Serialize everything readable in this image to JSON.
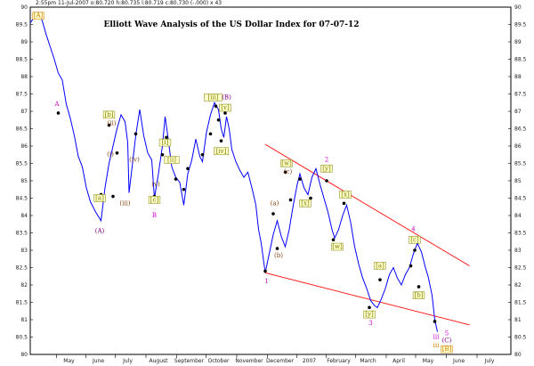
{
  "chart_data": {
    "type": "line",
    "title": "Elliott Wave Analysis of the US Dollar Index for 07-07-12",
    "header": "2:55pm 11-Jul-2007 o:80.720 h:80.735 l:80.719 c:80.730 (-.000) x 43",
    "y_ticks": [
      90,
      89.5,
      89,
      88.5,
      88,
      87.5,
      87,
      86.5,
      86,
      85.5,
      85,
      84.5,
      84,
      83.5,
      83,
      82.5,
      82,
      81.5,
      81,
      80.5,
      80
    ],
    "ylim": [
      80,
      90
    ],
    "x_ticks": [
      "May",
      "June",
      "July",
      "August",
      "September",
      "October",
      "November",
      "December",
      "2007",
      "February",
      "March",
      "April",
      "May",
      "June",
      "July"
    ],
    "xlim": [
      0,
      18
    ],
    "x_tick_positions": [
      1.45,
      2.55,
      3.65,
      4.8,
      5.95,
      7.05,
      8.2,
      9.35,
      10.45,
      11.55,
      12.65,
      13.8,
      14.9,
      16.05,
      17.2
    ],
    "series": [
      {
        "values": [
          [
            0.0,
            89.55
          ],
          [
            0.15,
            89.7
          ],
          [
            0.3,
            89.85
          ],
          [
            0.45,
            89.6
          ],
          [
            0.6,
            89.2
          ],
          [
            0.75,
            88.85
          ],
          [
            0.9,
            88.5
          ],
          [
            1.05,
            88.1
          ],
          [
            1.2,
            87.9
          ],
          [
            1.35,
            87.2
          ],
          [
            1.5,
            86.8
          ],
          [
            1.65,
            86.3
          ],
          [
            1.8,
            85.7
          ],
          [
            1.95,
            85.4
          ],
          [
            2.1,
            84.8
          ],
          [
            2.25,
            84.4
          ],
          [
            2.45,
            84.1
          ],
          [
            2.65,
            83.85
          ],
          [
            2.8,
            84.8
          ],
          [
            2.95,
            85.5
          ],
          [
            3.1,
            86.0
          ],
          [
            3.25,
            86.5
          ],
          [
            3.4,
            86.9
          ],
          [
            3.55,
            86.7
          ],
          [
            3.65,
            86.1
          ],
          [
            3.7,
            84.65
          ],
          [
            3.8,
            85.3
          ],
          [
            3.95,
            86.3
          ],
          [
            4.1,
            87.05
          ],
          [
            4.25,
            86.3
          ],
          [
            4.4,
            85.8
          ],
          [
            4.55,
            85.6
          ],
          [
            4.65,
            84.5
          ],
          [
            4.8,
            85.2
          ],
          [
            4.95,
            86.0
          ],
          [
            5.05,
            86.85
          ],
          [
            5.15,
            86.3
          ],
          [
            5.3,
            85.4
          ],
          [
            5.45,
            85.1
          ],
          [
            5.6,
            84.95
          ],
          [
            5.75,
            84.3
          ],
          [
            5.9,
            85.2
          ],
          [
            6.05,
            85.6
          ],
          [
            6.2,
            86.2
          ],
          [
            6.35,
            85.7
          ],
          [
            6.45,
            85.55
          ],
          [
            6.6,
            86.4
          ],
          [
            6.75,
            86.9
          ],
          [
            6.9,
            87.25
          ],
          [
            7.05,
            87.05
          ],
          [
            7.15,
            86.5
          ],
          [
            7.25,
            86.25
          ],
          [
            7.35,
            86.85
          ],
          [
            7.45,
            86.5
          ],
          [
            7.55,
            85.9
          ],
          [
            7.7,
            85.55
          ],
          [
            7.85,
            85.3
          ],
          [
            8.0,
            85.1
          ],
          [
            8.15,
            85.25
          ],
          [
            8.3,
            84.8
          ],
          [
            8.45,
            84.3
          ],
          [
            8.55,
            83.6
          ],
          [
            8.65,
            83.2
          ],
          [
            8.8,
            82.35
          ],
          [
            8.95,
            82.9
          ],
          [
            9.1,
            83.45
          ],
          [
            9.25,
            83.85
          ],
          [
            9.4,
            83.4
          ],
          [
            9.55,
            83.1
          ],
          [
            9.7,
            83.6
          ],
          [
            9.85,
            84.3
          ],
          [
            10.0,
            84.9
          ],
          [
            10.1,
            85.2
          ],
          [
            10.25,
            84.8
          ],
          [
            10.4,
            84.6
          ],
          [
            10.55,
            85.1
          ],
          [
            10.7,
            85.35
          ],
          [
            10.85,
            84.9
          ],
          [
            11.0,
            84.5
          ],
          [
            11.15,
            84.1
          ],
          [
            11.3,
            83.6
          ],
          [
            11.4,
            83.35
          ],
          [
            11.55,
            83.6
          ],
          [
            11.7,
            84.0
          ],
          [
            11.85,
            84.3
          ],
          [
            12.0,
            83.8
          ],
          [
            12.15,
            83.1
          ],
          [
            12.3,
            82.6
          ],
          [
            12.45,
            82.2
          ],
          [
            12.6,
            81.9
          ],
          [
            12.75,
            81.55
          ],
          [
            12.9,
            81.4
          ],
          [
            13.0,
            81.35
          ],
          [
            13.15,
            81.6
          ],
          [
            13.3,
            81.9
          ],
          [
            13.45,
            82.3
          ],
          [
            13.6,
            82.5
          ],
          [
            13.75,
            82.2
          ],
          [
            13.9,
            82.0
          ],
          [
            14.05,
            82.3
          ],
          [
            14.2,
            82.5
          ],
          [
            14.35,
            82.9
          ],
          [
            14.5,
            83.2
          ],
          [
            14.65,
            82.95
          ],
          [
            14.8,
            82.5
          ],
          [
            14.9,
            82.25
          ],
          [
            15.05,
            81.7
          ],
          [
            15.15,
            81.0
          ],
          [
            15.25,
            80.65
          ]
        ]
      }
    ],
    "trendlines": [
      {
        "color": "#ff2020",
        "from": [
          8.8,
          86.05
        ],
        "to": [
          16.45,
          82.55
        ]
      },
      {
        "color": "#ff2020",
        "from": [
          8.8,
          82.35
        ],
        "to": [
          16.45,
          80.85
        ]
      }
    ],
    "pivot_markers": [
      [
        1.05,
        86.95
      ],
      [
        2.65,
        84.6
      ],
      [
        2.95,
        86.6
      ],
      [
        3.1,
        84.55
      ],
      [
        3.25,
        85.8
      ],
      [
        3.95,
        86.35
      ],
      [
        4.65,
        84.55
      ],
      [
        4.95,
        85.75
      ],
      [
        5.1,
        86.25
      ],
      [
        5.45,
        85.05
      ],
      [
        5.75,
        84.75
      ],
      [
        5.9,
        85.35
      ],
      [
        6.45,
        85.75
      ],
      [
        6.75,
        86.35
      ],
      [
        6.95,
        87.15
      ],
      [
        7.05,
        86.75
      ],
      [
        7.15,
        86.15
      ],
      [
        7.3,
        86.95
      ],
      [
        8.8,
        82.4
      ],
      [
        9.1,
        84.05
      ],
      [
        9.25,
        83.05
      ],
      [
        9.55,
        85.25
      ],
      [
        9.75,
        84.45
      ],
      [
        10.1,
        85.05
      ],
      [
        10.5,
        84.5
      ],
      [
        11.1,
        85.0
      ],
      [
        11.35,
        83.3
      ],
      [
        11.75,
        84.35
      ],
      [
        12.7,
        81.35
      ],
      [
        13.1,
        82.15
      ],
      [
        14.25,
        82.55
      ],
      [
        14.4,
        83.0
      ],
      [
        14.55,
        81.95
      ],
      [
        15.15,
        80.95
      ]
    ],
    "wave_labels": [
      {
        "text": "[A]",
        "x": 0.3,
        "y": 89.7,
        "color": "#cc7a00",
        "boxed": true
      },
      {
        "text": "A",
        "x": 1.0,
        "y": 87.15,
        "color": "#cc00cc",
        "boxed": false
      },
      {
        "text": "(A)",
        "x": 2.6,
        "y": 83.5,
        "color": "#800080",
        "boxed": false
      },
      {
        "text": "[a]",
        "x": 2.6,
        "y": 84.45,
        "color": "#808000",
        "boxed": true
      },
      {
        "text": "[b]",
        "x": 2.95,
        "y": 86.85,
        "color": "#808000",
        "boxed": true
      },
      {
        "text": "(ii)",
        "x": 3.05,
        "y": 86.6,
        "color": "#8b4513",
        "boxed": false
      },
      {
        "text": "(i)",
        "x": 3.0,
        "y": 85.7,
        "color": "#8b4513",
        "boxed": false
      },
      {
        "text": "(iii)",
        "x": 3.55,
        "y": 84.3,
        "color": "#8b4513",
        "boxed": false
      },
      {
        "text": "(iv)",
        "x": 3.9,
        "y": 85.55,
        "color": "#8b4513",
        "boxed": false
      },
      {
        "text": "[c]",
        "x": 4.65,
        "y": 84.4,
        "color": "#808000",
        "boxed": true
      },
      {
        "text": "(v)",
        "x": 4.7,
        "y": 84.85,
        "color": "#8b4513",
        "boxed": false
      },
      {
        "text": "B",
        "x": 4.65,
        "y": 83.95,
        "color": "#cc00cc",
        "boxed": false
      },
      {
        "text": "[i]",
        "x": 5.05,
        "y": 86.05,
        "color": "#808000",
        "boxed": true
      },
      {
        "text": "[ii]",
        "x": 5.3,
        "y": 85.55,
        "color": "#808000",
        "boxed": true
      },
      {
        "text": "[iii]",
        "x": 6.85,
        "y": 87.35,
        "color": "#808000",
        "boxed": true
      },
      {
        "text": "(B)",
        "x": 7.35,
        "y": 87.35,
        "color": "#800080",
        "boxed": false
      },
      {
        "text": "[v]",
        "x": 7.3,
        "y": 87.05,
        "color": "#808000",
        "boxed": true
      },
      {
        "text": "[iv]",
        "x": 7.15,
        "y": 85.8,
        "color": "#808000",
        "boxed": true
      },
      {
        "text": "1",
        "x": 8.85,
        "y": 82.05,
        "color": "#cc00cc",
        "boxed": false
      },
      {
        "text": "(a)",
        "x": 9.15,
        "y": 84.3,
        "color": "#8b4513",
        "boxed": false
      },
      {
        "text": "(b)",
        "x": 9.3,
        "y": 82.8,
        "color": "#8b4513",
        "boxed": false
      },
      {
        "text": "[w]",
        "x": 9.6,
        "y": 85.45,
        "color": "#808000",
        "boxed": true
      },
      {
        "text": "(c)",
        "x": 9.65,
        "y": 85.2,
        "color": "#8b4513",
        "boxed": false
      },
      {
        "text": "[x]",
        "x": 10.3,
        "y": 84.3,
        "color": "#808000",
        "boxed": true
      },
      {
        "text": "2",
        "x": 11.1,
        "y": 85.55,
        "color": "#cc00cc",
        "boxed": false
      },
      {
        "text": "[y]",
        "x": 11.1,
        "y": 85.3,
        "color": "#808000",
        "boxed": true
      },
      {
        "text": "[x]",
        "x": 11.8,
        "y": 84.55,
        "color": "#808000",
        "boxed": true
      },
      {
        "text": "[w]",
        "x": 11.5,
        "y": 83.05,
        "color": "#808000",
        "boxed": true
      },
      {
        "text": "[y]",
        "x": 12.7,
        "y": 81.1,
        "color": "#808000",
        "boxed": true
      },
      {
        "text": "3",
        "x": 12.75,
        "y": 80.85,
        "color": "#cc00cc",
        "boxed": false
      },
      {
        "text": "[a]",
        "x": 13.1,
        "y": 82.5,
        "color": "#808000",
        "boxed": true
      },
      {
        "text": "[b]",
        "x": 14.55,
        "y": 81.65,
        "color": "#808000",
        "boxed": true
      },
      {
        "text": "4",
        "x": 14.35,
        "y": 83.55,
        "color": "#cc00cc",
        "boxed": false
      },
      {
        "text": "[c]",
        "x": 14.4,
        "y": 83.25,
        "color": "#808000",
        "boxed": true
      },
      {
        "text": "iii",
        "x": 15.2,
        "y": 80.45,
        "color": "#cc00cc",
        "boxed": false
      },
      {
        "text": "iii",
        "x": 15.2,
        "y": 80.2,
        "color": "#cc7a00",
        "boxed": false
      },
      {
        "text": "5",
        "x": 15.6,
        "y": 80.55,
        "color": "#cc00cc",
        "boxed": false
      },
      {
        "text": "(C)",
        "x": 15.6,
        "y": 80.35,
        "color": "#800080",
        "boxed": false
      },
      {
        "text": "[B]",
        "x": 15.6,
        "y": 80.1,
        "color": "#cc7a00",
        "boxed": true
      }
    ],
    "line_color": "#0000ff",
    "grid": false,
    "legend": "none"
  }
}
